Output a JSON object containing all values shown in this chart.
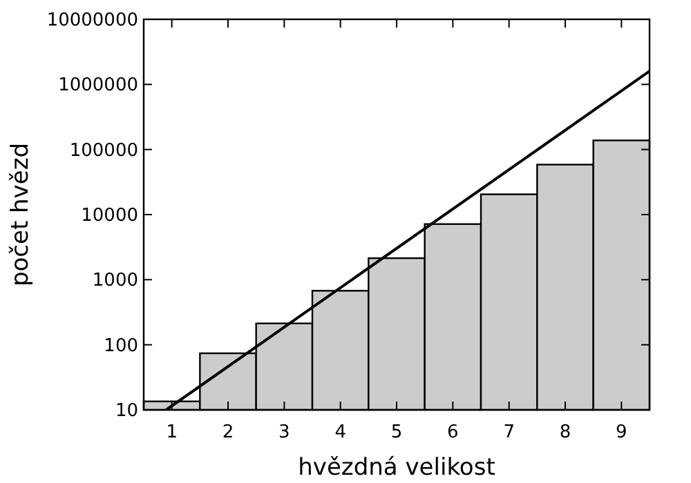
{
  "chart_data": {
    "type": "histogram",
    "xlabel": "hvězdná velikost",
    "ylabel": "počet hvězd",
    "log": "y",
    "bins": [
      0.5,
      1.5,
      2.5,
      3.5,
      4.5,
      5.5,
      6.5,
      7.5,
      8.5,
      9.5
    ],
    "values": [
      13.5,
      74,
      213,
      676,
      2140,
      7150,
      20500,
      58600,
      138000
    ],
    "color": "#cccccc",
    "series": [
      {
        "type": "line",
        "x": [
          0.9,
          9.5
        ],
        "values": [
          10,
          1600000
        ],
        "color": "#000000"
      }
    ],
    "xlim": [
      0.5,
      9.5
    ],
    "xticks": [
      1,
      2,
      3,
      4,
      5,
      6,
      7,
      8,
      9
    ],
    "ylim": [
      10,
      10000000
    ],
    "yticks": [
      10,
      100,
      1000,
      10000,
      100000,
      1000000,
      10000000
    ],
    "grid": false
  }
}
